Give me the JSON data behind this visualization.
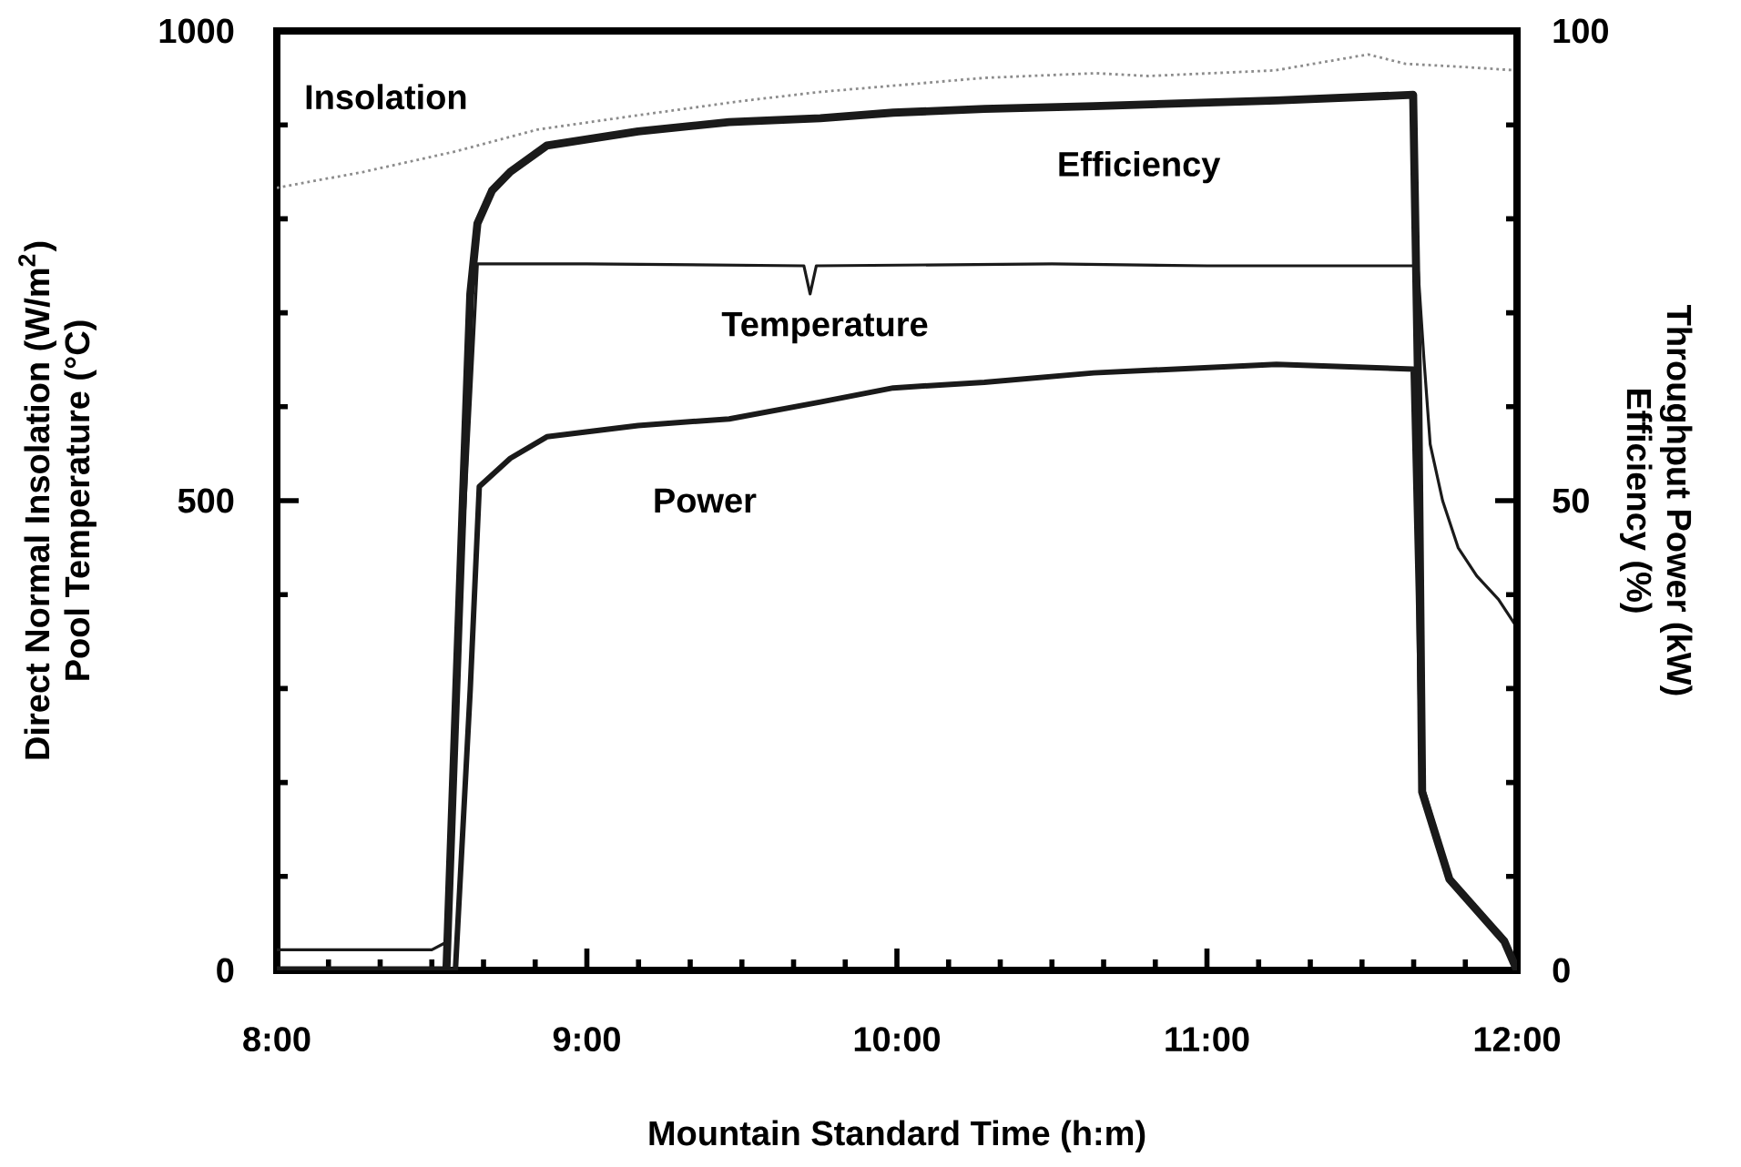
{
  "chart_data": {
    "type": "line",
    "xlabel": "Mountain Standard Time (h:m)",
    "ylabel": [
      "Direct Normal Insolation (W/m$^{2}$)",
      "Pool Temperature (°C)"
    ],
    "y2label": [
      "Throughput Power (kW)",
      "Efficiency (%)"
    ],
    "xlim": [
      8,
      12
    ],
    "xticks": [
      {
        "value": 8,
        "label": "8:00"
      },
      {
        "value": 9,
        "label": "9:00"
      },
      {
        "value": 10,
        "label": "10:00"
      },
      {
        "value": 11,
        "label": "11:00"
      },
      {
        "value": 12,
        "label": "12:00"
      }
    ],
    "ylim": [
      0,
      1000
    ],
    "yticks": [
      0,
      500,
      1000
    ],
    "y2lim": [
      0,
      100
    ],
    "y2ticks": [
      0,
      50,
      100
    ],
    "grid": false,
    "marker": "none",
    "series": [
      {
        "name": "Insolation",
        "color": "#8c8c8c",
        "line_style": "dotted",
        "x": [
          8.0,
          8.28,
          8.58,
          8.84,
          9.16,
          9.49,
          9.75,
          10.28,
          10.64,
          10.81,
          11.22,
          11.52,
          11.64,
          11.81,
          12.0
        ],
        "values": [
          833,
          850,
          872,
          895,
          910,
          925,
          935,
          950,
          955,
          952,
          958,
          975,
          965,
          962,
          958
        ]
      },
      {
        "name": "Temperature",
        "color": "#1a1a1a",
        "line_style": "solid",
        "x": [
          8.0,
          8.5,
          8.547,
          8.6,
          8.647,
          9.0,
          9.7,
          9.72,
          9.74,
          10.5,
          11.0,
          11.68,
          11.7,
          11.72,
          11.76,
          11.81,
          11.87,
          11.94,
          12.0
        ],
        "values": [
          22,
          22,
          30,
          450,
          752,
          752,
          750,
          720,
          750,
          752,
          750,
          750,
          650,
          560,
          500,
          450,
          420,
          395,
          365
        ]
      },
      {
        "name": "Efficiency",
        "color": "#1a1a1a",
        "line_style": "solid",
        "axis": "y2",
        "x": [
          8.0,
          8.547,
          8.6,
          8.624,
          8.647,
          8.694,
          8.753,
          8.871,
          9.165,
          9.459,
          9.753,
          9.988,
          10.282,
          10.635,
          11.224,
          11.665,
          11.682,
          11.694,
          11.782,
          11.959,
          12.0
        ],
        "values": [
          0,
          0,
          50,
          72,
          79.5,
          83,
          85,
          87.8,
          89.3,
          90.3,
          90.7,
          91.3,
          91.7,
          92,
          92.6,
          93.2,
          60,
          19,
          9.7,
          3.1,
          0
        ]
      },
      {
        "name": "Power",
        "color": "#1a1a1a",
        "line_style": "solid",
        "axis": "y2",
        "x": [
          8.0,
          8.576,
          8.624,
          8.653,
          8.753,
          8.871,
          9.165,
          9.459,
          9.753,
          9.988,
          10.282,
          10.635,
          11.224,
          11.665,
          11.682,
          11.694,
          11.782,
          11.959,
          12.0
        ],
        "values": [
          0,
          0,
          30,
          51.5,
          54.5,
          56.8,
          58,
          58.7,
          60.5,
          62,
          62.6,
          63.6,
          64.5,
          64,
          40,
          19.4,
          9.7,
          3.1,
          0
        ]
      }
    ]
  }
}
